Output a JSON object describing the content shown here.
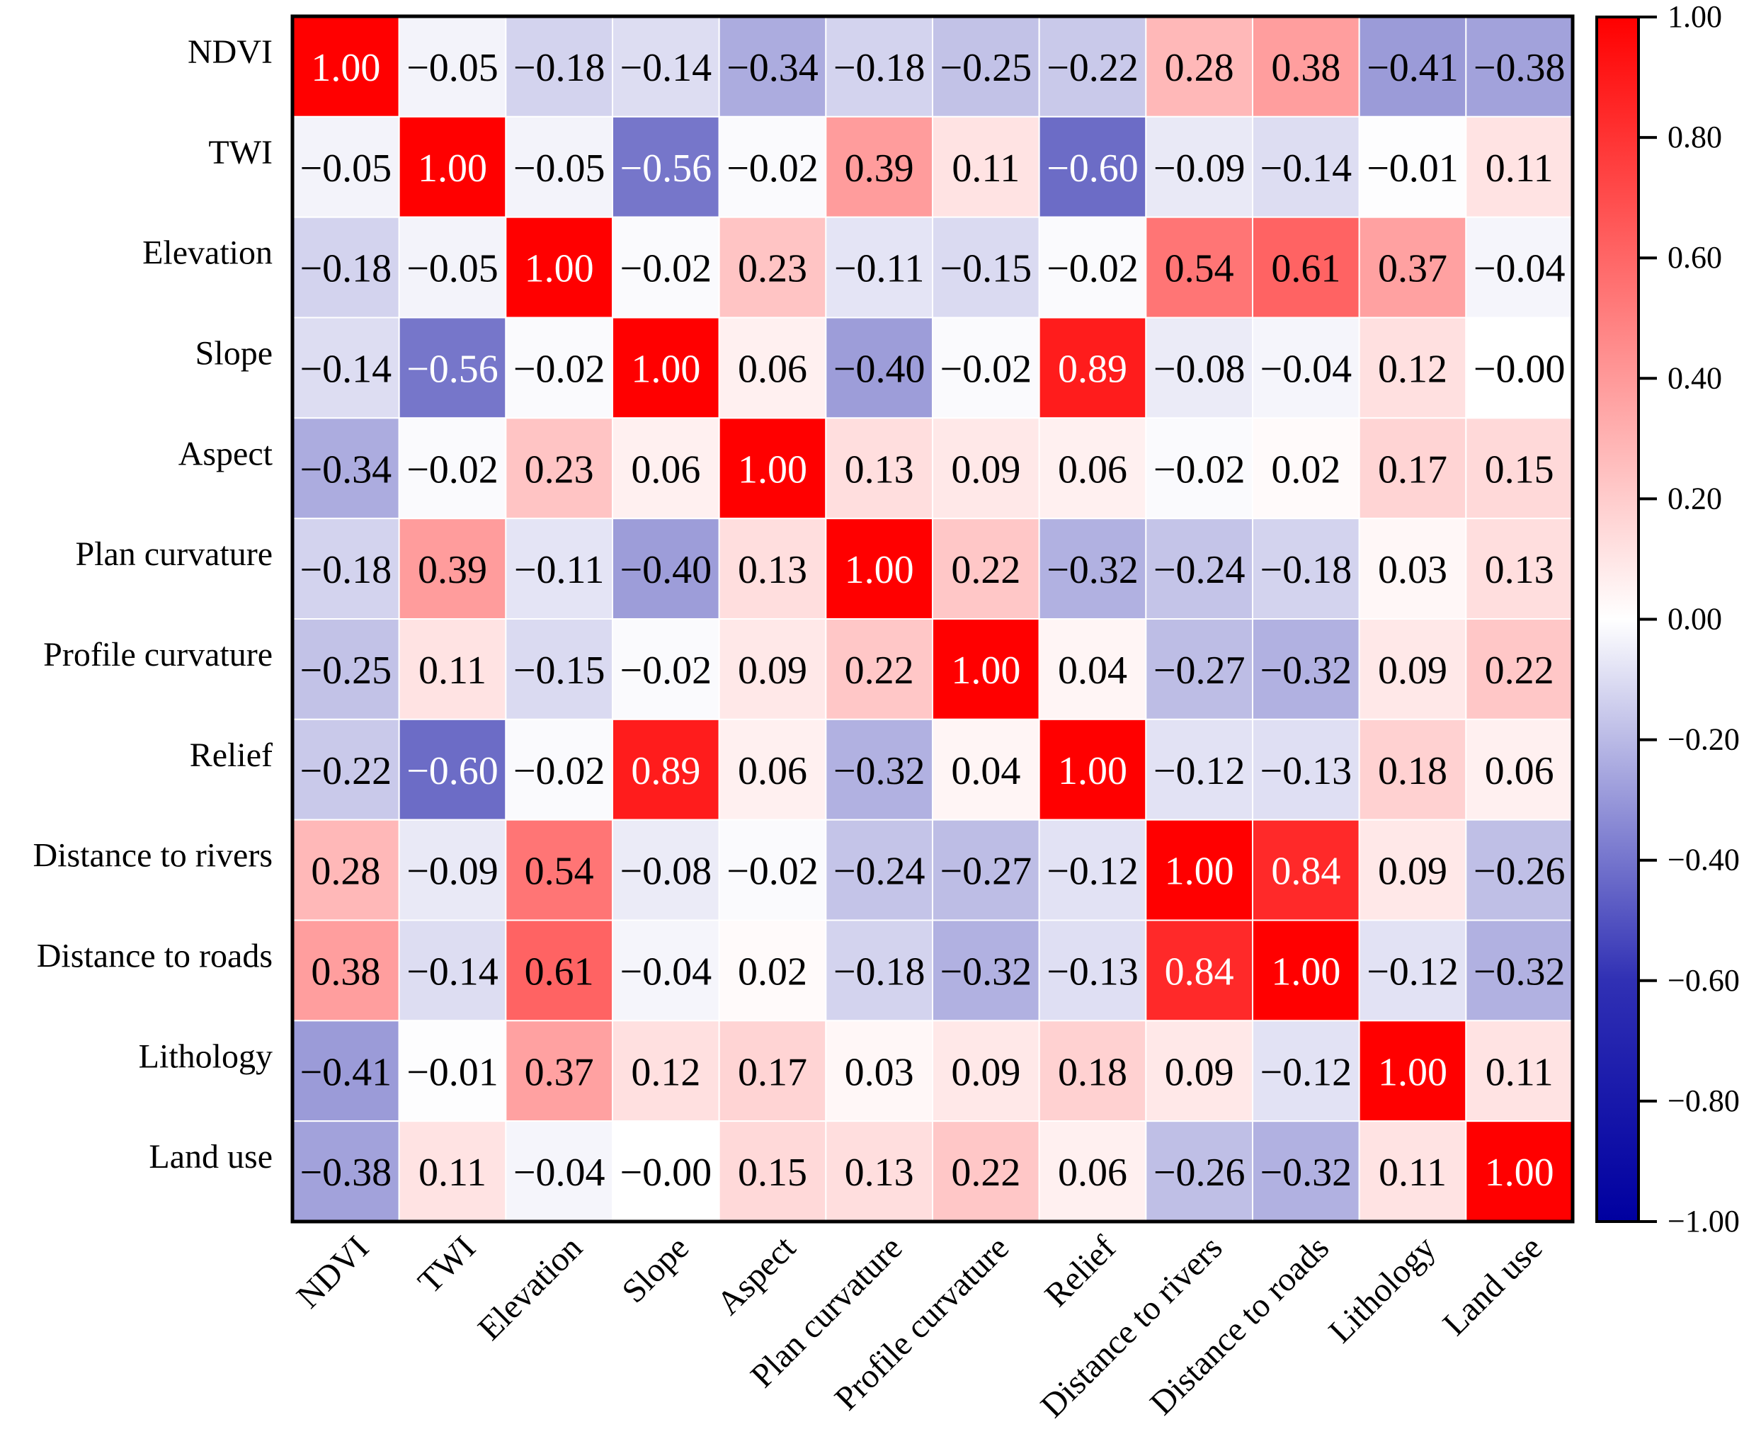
{
  "chart_data": {
    "type": "heatmap",
    "title": "",
    "xlabel": "",
    "ylabel": "",
    "labels": [
      "NDVI",
      "TWI",
      "Elevation",
      "Slope",
      "Aspect",
      "Plan curvature",
      "Profile curvature",
      "Relief",
      "Distance to rivers",
      "Distance to roads",
      "Lithology",
      "Land use"
    ],
    "matrix": [
      [
        1.0,
        -0.05,
        -0.18,
        -0.14,
        -0.34,
        -0.18,
        -0.25,
        -0.22,
        0.28,
        0.38,
        -0.41,
        -0.38
      ],
      [
        -0.05,
        1.0,
        -0.05,
        -0.56,
        -0.02,
        0.39,
        0.11,
        -0.6,
        -0.09,
        -0.14,
        -0.01,
        0.11
      ],
      [
        -0.18,
        -0.05,
        1.0,
        -0.02,
        0.23,
        -0.11,
        -0.15,
        -0.02,
        0.54,
        0.61,
        0.37,
        -0.04
      ],
      [
        -0.14,
        -0.56,
        -0.02,
        1.0,
        0.06,
        -0.4,
        -0.02,
        0.89,
        -0.08,
        -0.04,
        0.12,
        -0.0
      ],
      [
        -0.34,
        -0.02,
        0.23,
        0.06,
        1.0,
        0.13,
        0.09,
        0.06,
        -0.02,
        0.02,
        0.17,
        0.15
      ],
      [
        -0.18,
        0.39,
        -0.11,
        -0.4,
        0.13,
        1.0,
        0.22,
        -0.32,
        -0.24,
        -0.18,
        0.03,
        0.13
      ],
      [
        -0.25,
        0.11,
        -0.15,
        -0.02,
        0.09,
        0.22,
        1.0,
        0.04,
        -0.27,
        -0.32,
        0.09,
        0.22
      ],
      [
        -0.22,
        -0.6,
        -0.02,
        0.89,
        0.06,
        -0.32,
        0.04,
        1.0,
        -0.12,
        -0.13,
        0.18,
        0.06
      ],
      [
        0.28,
        -0.09,
        0.54,
        -0.08,
        -0.02,
        -0.24,
        -0.27,
        -0.12,
        1.0,
        0.84,
        0.09,
        -0.26
      ],
      [
        0.38,
        -0.14,
        0.61,
        -0.04,
        0.02,
        -0.18,
        -0.32,
        -0.13,
        0.84,
        1.0,
        -0.12,
        -0.32
      ],
      [
        -0.41,
        -0.01,
        0.37,
        0.12,
        0.17,
        0.03,
        0.09,
        0.18,
        0.09,
        -0.12,
        1.0,
        0.11
      ],
      [
        -0.38,
        0.11,
        -0.04,
        -0.0,
        0.15,
        0.13,
        0.22,
        0.06,
        -0.26,
        -0.32,
        0.11,
        1.0
      ]
    ],
    "colorbar": {
      "range": [
        -1.0,
        1.0
      ],
      "ticks": [
        1.0,
        0.8,
        0.6,
        0.4,
        0.2,
        0.0,
        -0.2,
        -0.4,
        -0.6,
        -0.8,
        -1.0
      ],
      "colors": {
        "negative_end": "#0000a0",
        "zero": "#ffffff",
        "positive_end": "#ff0000"
      }
    },
    "grid": false,
    "legend": "right"
  }
}
